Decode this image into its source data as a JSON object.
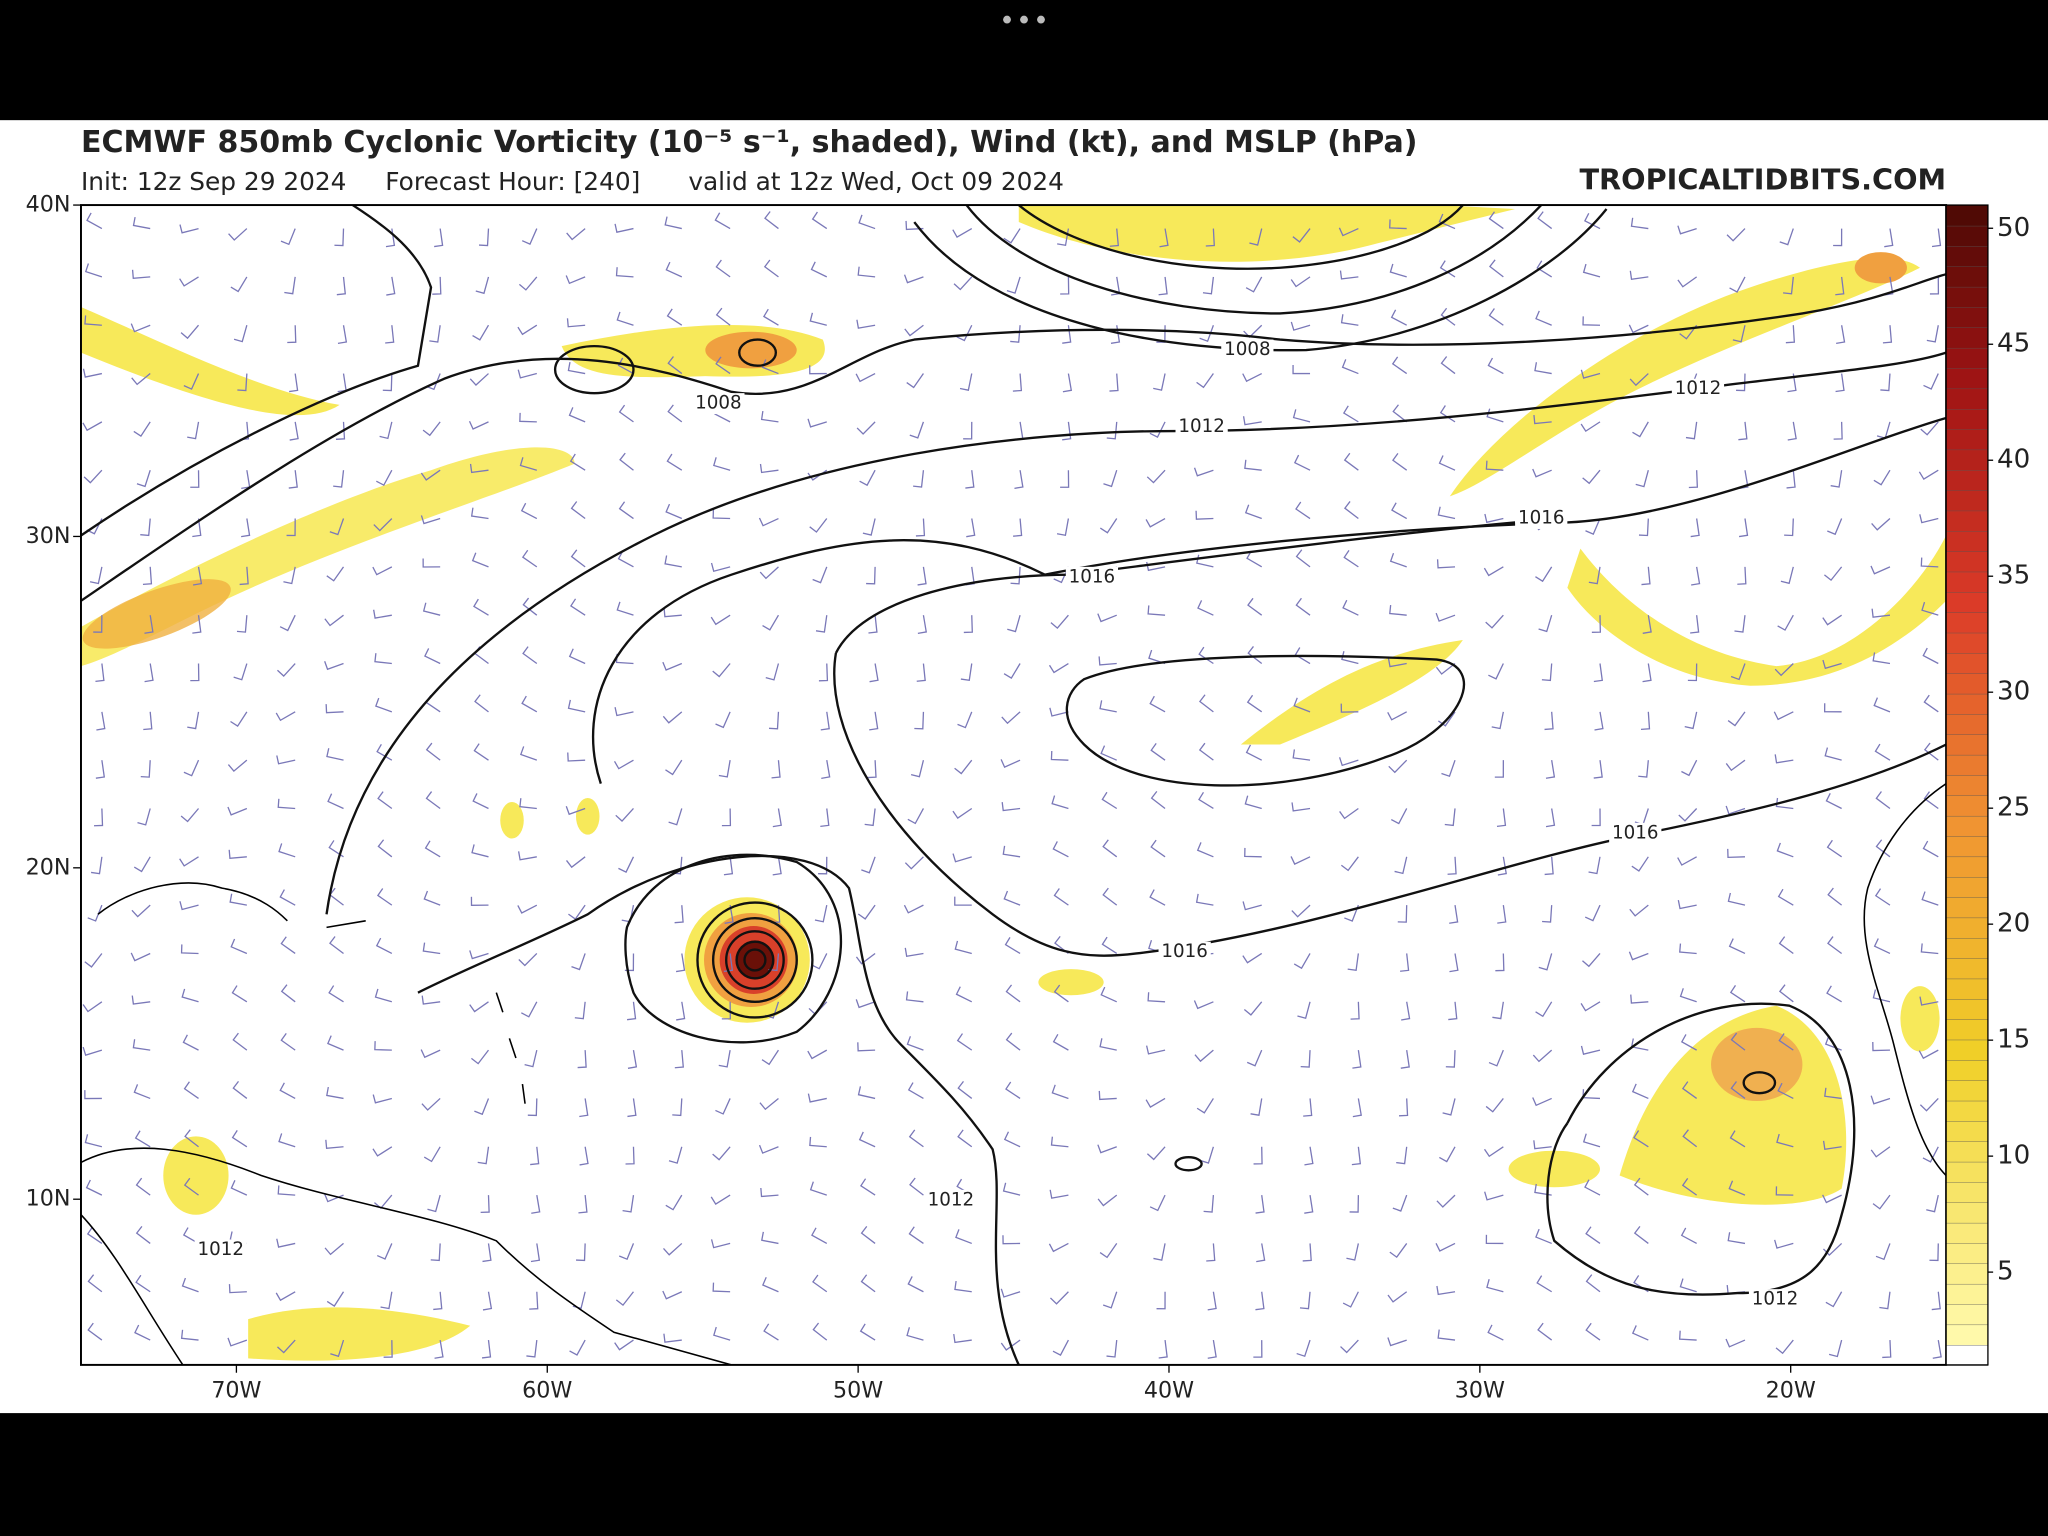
{
  "header": {
    "title": "ECMWF 850mb Cyclonic Vorticity (10⁻⁵ s⁻¹, shaded), Wind (kt), and MSLP (hPa)",
    "init": "Init: 12z Sep 29 2024",
    "forecast_hour": "Forecast Hour: [240]",
    "valid": "valid at 12z Wed, Oct 09 2024",
    "watermark": "TROPICALTIDBITS.COM"
  },
  "map": {
    "latlim": [
      5,
      40
    ],
    "lonlim": [
      -75,
      -15
    ],
    "lat_ticks": [
      {
        "value": 40,
        "label": "40N"
      },
      {
        "value": 30,
        "label": "30N"
      },
      {
        "value": 20,
        "label": "20N"
      },
      {
        "value": 10,
        "label": "10N"
      }
    ],
    "lon_ticks": [
      {
        "value": -70,
        "label": "70W"
      },
      {
        "value": -60,
        "label": "60W"
      },
      {
        "value": -50,
        "label": "50W"
      },
      {
        "value": -40,
        "label": "40W"
      },
      {
        "value": -30,
        "label": "30W"
      },
      {
        "value": -20,
        "label": "20W"
      }
    ],
    "isobar_labels": [
      "1008",
      "1008",
      "1012",
      "1012",
      "1016",
      "1016",
      "1016",
      "1016",
      "1012",
      "1012",
      "1012"
    ]
  },
  "colorbar": {
    "lim": [
      1,
      51
    ],
    "ticks": [
      5,
      10,
      15,
      20,
      25,
      30,
      35,
      40,
      45,
      50
    ]
  }
}
